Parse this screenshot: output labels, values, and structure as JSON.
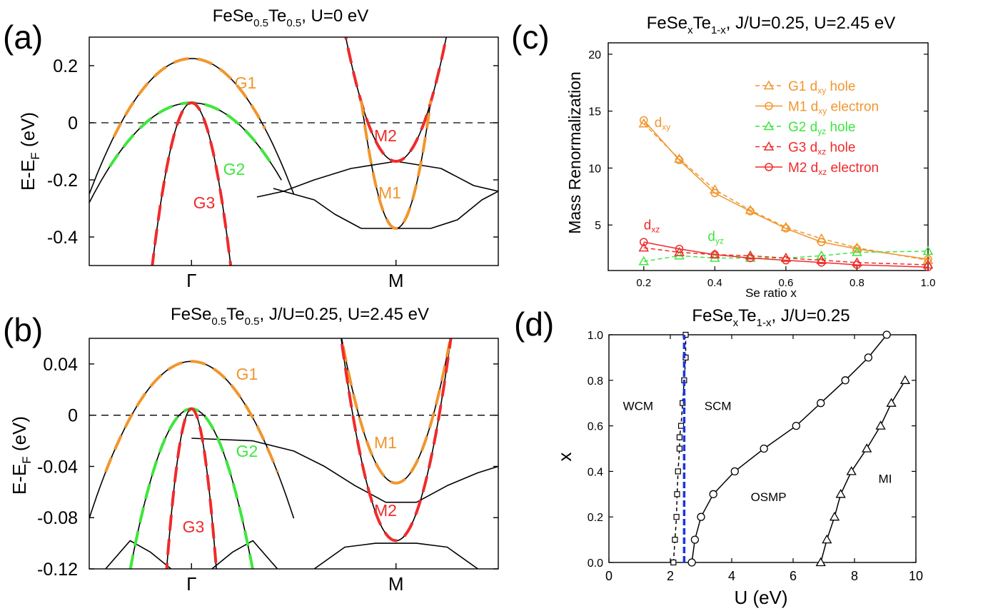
{
  "colors": {
    "orange": "#f0962e",
    "green": "#3ee63e",
    "red": "#f02a2a",
    "blue": "#1f33e0",
    "black": "#000000"
  },
  "chart_data": [
    {
      "panel_label": "(a)",
      "type": "line",
      "title": {
        "base": "FeSe",
        "sub1": "0.5",
        "mid": "Te",
        "sub2": "0.5",
        "rest": ", U=0 eV"
      },
      "ylabel": {
        "base": "E-E",
        "sub": "F",
        "rest": " (eV)"
      },
      "xlim": [
        -1,
        1
      ],
      "ylim": [
        -0.5,
        0.3
      ],
      "xticks": [
        {
          "x": -0.5,
          "label": "Γ"
        },
        {
          "x": 0.5,
          "label": "M"
        }
      ],
      "yticks": [
        {
          "v": 0.2,
          "label": "0.2"
        },
        {
          "v": 0,
          "label": "0"
        },
        {
          "v": -0.2,
          "label": "-0.2"
        },
        {
          "v": -0.4,
          "label": "-0.4"
        }
      ],
      "fermi_level": 0,
      "band_labels": [
        {
          "text": "G1",
          "x": -0.26,
          "y": 0.14,
          "color": "orange"
        },
        {
          "text": "G2",
          "x": -0.38,
          "y": -0.1,
          "color": "green"
        },
        {
          "text": "G3",
          "x": -0.43,
          "y": -0.28,
          "color": "red"
        },
        {
          "text": "M2",
          "x": -0.04,
          "y": 0.46,
          "color": "red",
          "note": "uses data coords of M panel via x offset"
        },
        {
          "text": "M1",
          "x": 0.46,
          "y": -0.26,
          "color": "orange"
        }
      ],
      "series": [
        {
          "name": "G1 DFT",
          "kind": "parabola",
          "color": "black",
          "dash": false,
          "x0": -0.5,
          "e0": 0.225,
          "k": 1.9,
          "range": [
            -1,
            0.0
          ]
        },
        {
          "name": "G1 fit",
          "kind": "parabola",
          "color": "orange",
          "dash": true,
          "x0": -0.5,
          "e0": 0.225,
          "k": 1.9,
          "range": [
            -0.88,
            -0.14
          ]
        },
        {
          "name": "G2 DFT",
          "kind": "parabola",
          "color": "black",
          "dash": false,
          "x0": -0.5,
          "e0": 0.07,
          "k": 1.4,
          "range": [
            -1,
            -0.06
          ]
        },
        {
          "name": "G2 fit",
          "kind": "parabola",
          "color": "green",
          "dash": true,
          "x0": -0.5,
          "e0": 0.07,
          "k": 1.4,
          "range": [
            -0.9,
            -0.1
          ]
        },
        {
          "name": "G3 DFT",
          "kind": "parabola",
          "color": "black",
          "dash": false,
          "x0": -0.5,
          "e0": 0.07,
          "k": 15.5,
          "range": [
            -0.72,
            -0.28
          ]
        },
        {
          "name": "G3 fit",
          "kind": "parabola",
          "color": "red",
          "dash": true,
          "x0": -0.5,
          "e0": 0.07,
          "k": 15.5,
          "range": [
            -0.72,
            -0.28
          ]
        },
        {
          "name": "M2 DFT",
          "kind": "parabola",
          "color": "black",
          "dash": false,
          "x0": 0.5,
          "e0": -0.135,
          "k": 7.2,
          "range": [
            0.2,
            0.8
          ]
        },
        {
          "name": "M2 fit",
          "kind": "parabola",
          "color": "red",
          "dash": true,
          "x0": 0.5,
          "e0": -0.135,
          "k": 7.2,
          "range": [
            0.22,
            0.78
          ]
        },
        {
          "name": "M1 DFT",
          "kind": "parabola",
          "color": "black",
          "dash": false,
          "x0": 0.5,
          "e0": -0.37,
          "k": 15.5,
          "range": [
            0.33,
            0.67
          ]
        },
        {
          "name": "M1 fit",
          "kind": "parabola",
          "color": "orange",
          "dash": true,
          "x0": 0.5,
          "e0": -0.37,
          "k": 15.5,
          "range": [
            0.33,
            0.67
          ]
        },
        {
          "name": "M flat",
          "kind": "points",
          "color": "black",
          "dash": false,
          "pts": [
            [
              -0.18,
              -0.26
            ],
            [
              -0.05,
              -0.24
            ],
            [
              0.1,
              -0.2
            ],
            [
              0.28,
              -0.16
            ],
            [
              0.5,
              -0.135
            ],
            [
              0.72,
              -0.16
            ],
            [
              0.88,
              -0.22
            ],
            [
              1.0,
              -0.24
            ]
          ]
        },
        {
          "name": "M low",
          "kind": "points",
          "color": "black",
          "dash": false,
          "pts": [
            [
              0.33,
              -0.37
            ],
            [
              0.5,
              -0.37
            ],
            [
              0.67,
              -0.37
            ],
            [
              0.8,
              -0.34
            ],
            [
              0.92,
              -0.27
            ],
            [
              1.0,
              -0.24
            ]
          ]
        },
        {
          "name": "G low",
          "kind": "points",
          "color": "black",
          "dash": false,
          "pts": [
            [
              -0.1,
              -0.23
            ],
            [
              0.0,
              -0.25
            ],
            [
              0.1,
              -0.27
            ],
            [
              0.2,
              -0.32
            ],
            [
              0.33,
              -0.37
            ]
          ]
        }
      ]
    },
    {
      "panel_label": "(b)",
      "type": "line",
      "title": {
        "base": "FeSe",
        "sub1": "0.5",
        "mid": "Te",
        "sub2": "0.5",
        "rest": ", J/U=0.25, U=2.45 eV"
      },
      "ylabel": {
        "base": "E-E",
        "sub": "F",
        "rest": " (eV)"
      },
      "xlim": [
        -1,
        1
      ],
      "ylim": [
        -0.12,
        0.06
      ],
      "xticks": [
        {
          "x": -0.5,
          "label": "Γ"
        },
        {
          "x": 0.5,
          "label": "M"
        }
      ],
      "yticks": [
        {
          "v": 0.04,
          "label": "0.04"
        },
        {
          "v": 0,
          "label": "0"
        },
        {
          "v": -0.04,
          "label": "-0.04"
        },
        {
          "v": -0.08,
          "label": "-0.08"
        },
        {
          "v": -0.12,
          "label": "-0.12"
        }
      ],
      "fermi_level": 0,
      "band_labels": [
        {
          "text": "G1",
          "x": -0.2,
          "y": 0.032,
          "color": "orange"
        },
        {
          "text": "G2",
          "x": -0.2,
          "y": -0.026,
          "color": "green"
        },
        {
          "text": "G3",
          "x": -0.5,
          "y": -0.092,
          "color": "red"
        },
        {
          "text": "M1",
          "x": -0.05,
          "y": -0.018,
          "color": "orange",
          "note": "relative to M"
        },
        {
          "text": "M2",
          "x": -0.05,
          "y": -0.07,
          "color": "red",
          "note": "relative to M"
        }
      ],
      "series": [
        {
          "name": "G1 DFT",
          "kind": "parabola",
          "color": "black",
          "dash": false,
          "x0": -0.5,
          "e0": 0.042,
          "k": 0.49,
          "range": [
            -1,
            0.0
          ]
        },
        {
          "name": "G1 fit",
          "kind": "parabola",
          "color": "orange",
          "dash": true,
          "x0": -0.5,
          "e0": 0.042,
          "k": 0.49,
          "range": [
            -0.92,
            -0.08
          ]
        },
        {
          "name": "G2 DFT",
          "kind": "parabola",
          "color": "black",
          "dash": false,
          "x0": -0.5,
          "e0": 0.005,
          "k": 1.4,
          "range": [
            -0.8,
            -0.2
          ]
        },
        {
          "name": "G2 fit",
          "kind": "parabola",
          "color": "green",
          "dash": true,
          "x0": -0.5,
          "e0": 0.005,
          "k": 1.4,
          "range": [
            -0.8,
            -0.2
          ]
        },
        {
          "name": "G3 DFT",
          "kind": "parabola",
          "color": "black",
          "dash": false,
          "x0": -0.5,
          "e0": 0.005,
          "k": 8.5,
          "range": [
            -0.625,
            -0.375
          ]
        },
        {
          "name": "G3 fit",
          "kind": "parabola",
          "color": "red",
          "dash": true,
          "x0": -0.5,
          "e0": 0.005,
          "k": 8.5,
          "range": [
            -0.625,
            -0.375
          ]
        },
        {
          "name": "M1 DFT",
          "kind": "parabola",
          "color": "black",
          "dash": false,
          "x0": 0.5,
          "e0": -0.053,
          "k": 1.6,
          "range": [
            0.18,
            0.82
          ]
        },
        {
          "name": "M1 fit",
          "kind": "parabola",
          "color": "orange",
          "dash": true,
          "x0": 0.5,
          "e0": -0.053,
          "k": 1.6,
          "range": [
            0.2,
            0.8
          ]
        },
        {
          "name": "M2 DFT",
          "kind": "parabola",
          "color": "black",
          "dash": false,
          "x0": 0.5,
          "e0": -0.098,
          "k": 2.2,
          "range": [
            0.18,
            0.82
          ]
        },
        {
          "name": "M2 fit",
          "kind": "parabola",
          "color": "red",
          "dash": true,
          "x0": 0.5,
          "e0": -0.098,
          "k": 2.2,
          "range": [
            0.22,
            0.78
          ]
        },
        {
          "name": "G flat",
          "kind": "points",
          "color": "black",
          "dash": false,
          "pts": [
            [
              -0.5,
              -0.018
            ],
            [
              -0.2,
              -0.02
            ],
            [
              0.0,
              -0.028
            ],
            [
              0.15,
              -0.04
            ],
            [
              0.3,
              -0.055
            ],
            [
              0.45,
              -0.068
            ],
            [
              0.6,
              -0.068
            ],
            [
              0.75,
              -0.055
            ],
            [
              0.9,
              -0.045
            ],
            [
              1.0,
              -0.04
            ]
          ]
        },
        {
          "name": "G low left",
          "kind": "points",
          "color": "black",
          "dash": false,
          "pts": [
            [
              -0.92,
              -0.12
            ],
            [
              -0.8,
              -0.098
            ],
            [
              -0.7,
              -0.107
            ],
            [
              -0.6,
              -0.12
            ]
          ]
        },
        {
          "name": "G low right",
          "kind": "points",
          "color": "black",
          "dash": false,
          "pts": [
            [
              -0.4,
              -0.12
            ],
            [
              -0.3,
              -0.107
            ],
            [
              -0.2,
              -0.098
            ],
            [
              -0.08,
              -0.12
            ]
          ]
        },
        {
          "name": "M bottom",
          "kind": "points",
          "color": "black",
          "dash": false,
          "pts": [
            [
              0.1,
              -0.12
            ],
            [
              0.25,
              -0.103
            ],
            [
              0.4,
              -0.1
            ],
            [
              0.6,
              -0.1
            ],
            [
              0.75,
              -0.103
            ],
            [
              0.9,
              -0.12
            ]
          ]
        }
      ]
    },
    {
      "panel_label": "(c)",
      "type": "line",
      "title": {
        "base": "FeSe",
        "sub1": "x",
        "mid": "Te",
        "sub2": "1-x",
        "rest": ", J/U=0.25, U=2.45 eV"
      },
      "xlabel": "Se ratio x",
      "ylabel": "Mass Renormalization",
      "xlim": [
        0.1,
        1.0
      ],
      "ylim": [
        1,
        21
      ],
      "xticks": [
        0.2,
        0.4,
        0.6,
        0.8,
        1.0
      ],
      "xtick_labels": [
        "0.2",
        "0.4",
        "0.6",
        "0.8",
        "1.0"
      ],
      "yticks": [
        5,
        10,
        15,
        20
      ],
      "ytick_labels": [
        "5",
        "10",
        "15",
        "20"
      ],
      "x": [
        0.2,
        0.3,
        0.4,
        0.5,
        0.6,
        0.7,
        0.8,
        1.0
      ],
      "series": [
        {
          "name": "G1 dxy hole",
          "legend": {
            "pre": "G1 d",
            "sub": "xy",
            "post": " hole"
          },
          "color": "orange",
          "marker": "triangle",
          "dash": true,
          "values": [
            13.9,
            10.8,
            8.1,
            6.3,
            4.8,
            3.8,
            3.0,
            1.9
          ]
        },
        {
          "name": "M1 dxy electron",
          "legend": {
            "pre": "M1 d",
            "sub": "xy",
            "post": " electron"
          },
          "color": "orange",
          "marker": "circle",
          "dash": false,
          "values": [
            14.2,
            10.7,
            7.8,
            6.2,
            4.7,
            3.5,
            2.9,
            2.0
          ]
        },
        {
          "name": "G2 dyz hole",
          "legend": {
            "pre": "G2 d",
            "sub": "yz",
            "post": " hole"
          },
          "color": "green",
          "marker": "triangle",
          "dash": true,
          "values": [
            1.8,
            2.3,
            2.1,
            2.1,
            2.1,
            2.3,
            2.6,
            2.7
          ]
        },
        {
          "name": "G3 dxz hole",
          "legend": {
            "pre": "G3 d",
            "sub": "xz",
            "post": " hole"
          },
          "color": "red",
          "marker": "triangle",
          "dash": true,
          "values": [
            3.0,
            2.6,
            2.4,
            2.3,
            2.1,
            1.9,
            1.7,
            1.5
          ]
        },
        {
          "name": "M2 dxz electron",
          "legend": {
            "pre": "M2 d",
            "sub": "xz",
            "post": " electron"
          },
          "color": "red",
          "marker": "circle",
          "dash": false,
          "values": [
            3.5,
            2.9,
            2.4,
            2.1,
            1.9,
            1.7,
            1.5,
            1.3
          ]
        }
      ],
      "annotations": [
        {
          "pre": "d",
          "sub": "xy",
          "x": 0.23,
          "y": 13.6,
          "color": "orange"
        },
        {
          "pre": "d",
          "sub": "xz",
          "x": 0.2,
          "y": 4.6,
          "color": "red"
        },
        {
          "pre": "d",
          "sub": "yz",
          "x": 0.38,
          "y": 3.6,
          "color": "green"
        }
      ]
    },
    {
      "panel_label": "(d)",
      "type": "scatter",
      "title": {
        "base": "FeSe",
        "sub1": "x",
        "mid": "Te",
        "sub2": "1-x",
        "rest": ", J/U=0.25"
      },
      "xlabel": "U (eV)",
      "ylabel": "x",
      "xlim": [
        0,
        10
      ],
      "ylim": [
        0,
        1
      ],
      "xticks": [
        0,
        2,
        4,
        6,
        8,
        10
      ],
      "xtick_labels": [
        "0",
        "2",
        "4",
        "6",
        "8",
        "10"
      ],
      "yticks": [
        0.0,
        0.2,
        0.4,
        0.6,
        0.8,
        1.0
      ],
      "ytick_labels": [
        "0.0",
        "0.2",
        "0.4",
        "0.6",
        "0.8",
        "1.0"
      ],
      "regions": [
        {
          "text": "WCM",
          "x": 0.95,
          "y": 0.67
        },
        {
          "text": "SCM",
          "x": 3.55,
          "y": 0.67
        },
        {
          "text": "OSMP",
          "x": 5.2,
          "y": 0.27
        },
        {
          "text": "MI",
          "x": 9.0,
          "y": 0.35
        }
      ],
      "series": [
        {
          "name": "WCM-SCM boundary",
          "color": "black",
          "marker": "square",
          "dash": true,
          "x": [
            2.1,
            2.15,
            2.2,
            2.22,
            2.25,
            2.3,
            2.3,
            2.35,
            2.4,
            2.45,
            2.5,
            2.5
          ],
          "y": [
            0.0,
            0.1,
            0.2,
            0.3,
            0.4,
            0.5,
            0.55,
            0.6,
            0.7,
            0.8,
            0.9,
            1.0
          ]
        },
        {
          "name": "crossover U",
          "color": "blue",
          "marker": "none",
          "dash": true,
          "x": [
            2.45,
            2.45
          ],
          "y": [
            0.0,
            1.0
          ]
        },
        {
          "name": "SCM-OSMP boundary",
          "color": "black",
          "marker": "circle",
          "dash": false,
          "x": [
            2.7,
            2.8,
            3.0,
            3.4,
            4.1,
            5.05,
            6.1,
            6.9,
            7.7,
            8.45,
            9.05
          ],
          "y": [
            0.0,
            0.1,
            0.2,
            0.3,
            0.4,
            0.5,
            0.6,
            0.7,
            0.8,
            0.9,
            1.0
          ]
        },
        {
          "name": "OSMP-MI boundary",
          "color": "black",
          "marker": "triangle",
          "dash": false,
          "x": [
            6.9,
            7.1,
            7.35,
            7.55,
            7.9,
            8.4,
            8.85,
            9.2,
            9.65
          ],
          "y": [
            0.0,
            0.1,
            0.2,
            0.3,
            0.4,
            0.5,
            0.6,
            0.7,
            0.8
          ]
        }
      ]
    }
  ]
}
